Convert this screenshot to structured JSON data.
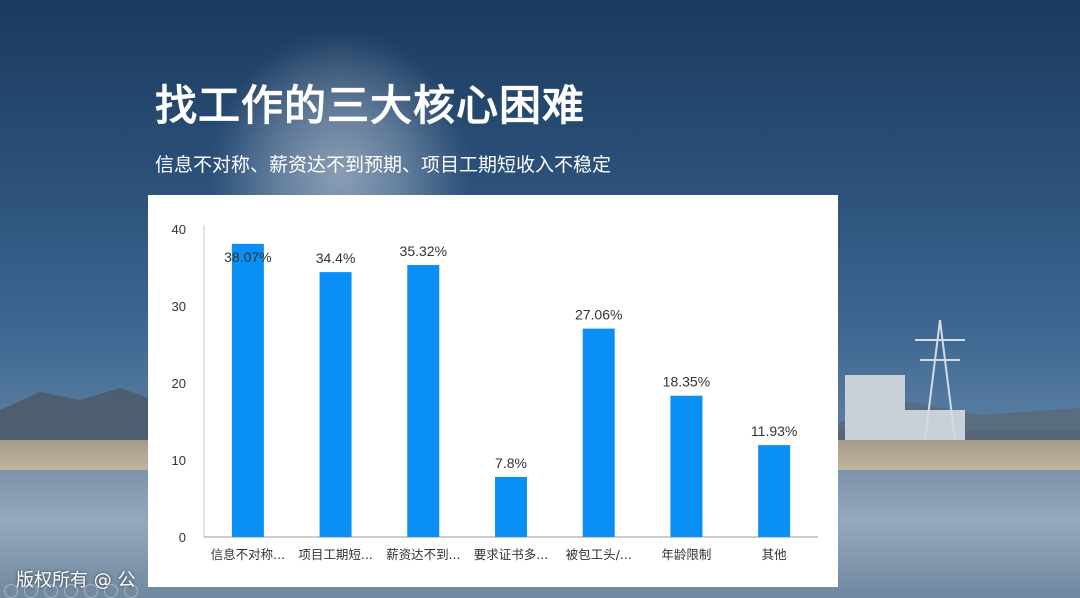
{
  "slide": {
    "title": "找工作的三大核心困难",
    "subtitle": "信息不对称、薪资达不到预期、项目工期短收入不稳定",
    "footer": "版权所有 @ 公"
  },
  "colors": {
    "bar": "#0a8ff5",
    "axis": "#8c8c8c",
    "text": "#333333"
  },
  "chart_data": {
    "type": "bar",
    "categories": [
      "信息不对称...",
      "项目工期短...",
      "薪资达不到...",
      "要求证书多...",
      "被包工头/...",
      "年龄限制",
      "其他"
    ],
    "values": [
      38.07,
      34.4,
      35.32,
      7.8,
      27.06,
      18.35,
      11.93
    ],
    "data_labels": [
      "38.07%",
      "34.4%",
      "35.32%",
      "7.8%",
      "27.06%",
      "18.35%",
      "11.93%"
    ],
    "yticks": [
      "0",
      "10",
      "20",
      "30",
      "40"
    ],
    "ylim": [
      0,
      40
    ],
    "grid": false,
    "legend": "none"
  }
}
